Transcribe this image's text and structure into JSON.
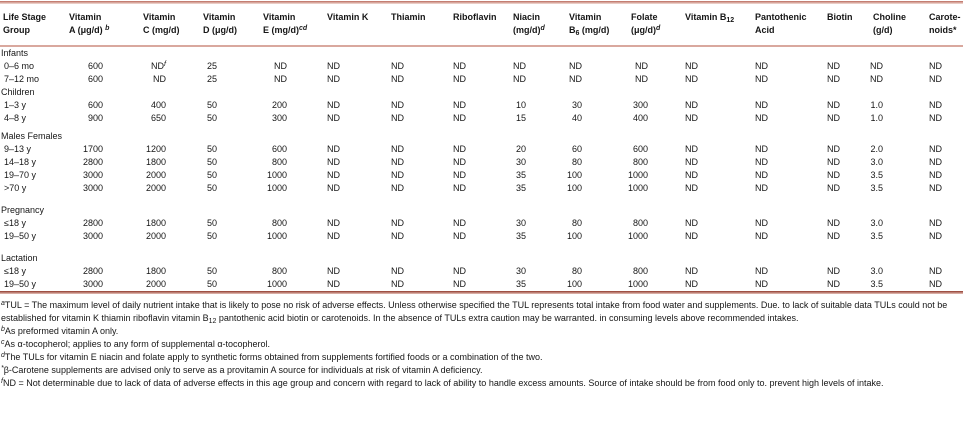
{
  "page": {
    "background_color": "#ffffff",
    "text_color": "#161616",
    "top_rule_color": "#c47e72",
    "header_rule_color": "#d9a89e",
    "bottom_rule_color": "#9e5044"
  },
  "table": {
    "columns": [
      {
        "lines": [
          "Life Stage",
          "Group"
        ]
      },
      {
        "lines": [
          "Vitamin",
          "A (μg/d) ^b^"
        ]
      },
      {
        "lines": [
          "Vitamin",
          "C (mg/d)"
        ]
      },
      {
        "lines": [
          "Vitamin",
          "D (μg/d)"
        ]
      },
      {
        "lines": [
          "Vitamin",
          "E (mg/d)^cd^"
        ]
      },
      {
        "lines": [
          "Vitamin K"
        ]
      },
      {
        "lines": [
          "Thiamin"
        ]
      },
      {
        "lines": [
          "Riboflavin"
        ]
      },
      {
        "lines": [
          "Niacin",
          "(mg/d)^d^"
        ]
      },
      {
        "lines": [
          "Vitamin",
          "B~6~ (mg/d)"
        ]
      },
      {
        "lines": [
          "Folate",
          "(μg/d)^d^"
        ]
      },
      {
        "lines": [
          "Vitamin B~12~"
        ]
      },
      {
        "lines": [
          "Pantothenic",
          "Acid"
        ]
      },
      {
        "lines": [
          "Biotin"
        ]
      },
      {
        "lines": [
          "Choline",
          "(g/d)"
        ]
      },
      {
        "lines": [
          "Carote-",
          "noids*"
        ]
      }
    ],
    "rows": [
      {
        "type": "section",
        "label": "Infants"
      },
      {
        "type": "data",
        "label": "0–6 mo",
        "values": [
          "600",
          "ND^f^",
          "25",
          "ND",
          "ND",
          "ND",
          "ND",
          "ND",
          "ND",
          "ND",
          "ND",
          "ND",
          "ND",
          "ND",
          "ND"
        ]
      },
      {
        "type": "data",
        "label": "7–12 mo",
        "values": [
          "600",
          "ND",
          "25",
          "ND",
          "ND",
          "ND",
          "ND",
          "ND",
          "ND",
          "ND",
          "ND",
          "ND",
          "ND",
          "ND",
          "ND"
        ]
      },
      {
        "type": "section",
        "label": "Children"
      },
      {
        "type": "data",
        "label": "1–3 y",
        "values": [
          "600",
          "400",
          "50",
          "200",
          "ND",
          "ND",
          "ND",
          "10",
          "30",
          "300",
          "ND",
          "ND",
          "ND",
          "1.0",
          "ND"
        ]
      },
      {
        "type": "data",
        "label": "4–8 y",
        "values": [
          "900",
          "650",
          "50",
          "300",
          "ND",
          "ND",
          "ND",
          "15",
          "40",
          "400",
          "ND",
          "ND",
          "ND",
          "1.0",
          "ND"
        ]
      },
      {
        "type": "section",
        "label": "Males Females"
      },
      {
        "type": "data",
        "label": "9–13 y",
        "values": [
          "1700",
          "1200",
          "50",
          "600",
          "ND",
          "ND",
          "ND",
          "20",
          "60",
          "600",
          "ND",
          "ND",
          "ND",
          "2.0",
          "ND"
        ]
      },
      {
        "type": "data",
        "label": "14–18 y",
        "values": [
          "2800",
          "1800",
          "50",
          "800",
          "ND",
          "ND",
          "ND",
          "30",
          "80",
          "800",
          "ND",
          "ND",
          "ND",
          "3.0",
          "ND"
        ]
      },
      {
        "type": "data",
        "label": "19–70 y",
        "values": [
          "3000",
          "2000",
          "50",
          "1000",
          "ND",
          "ND",
          "ND",
          "35",
          "100",
          "1000",
          "ND",
          "ND",
          "ND",
          "3.5",
          "ND"
        ]
      },
      {
        "type": "data",
        "label": ">70 y",
        "values": [
          "3000",
          "2000",
          "50",
          "1000",
          "ND",
          "ND",
          "ND",
          "35",
          "100",
          "1000",
          "ND",
          "ND",
          "ND",
          "3.5",
          "ND"
        ]
      },
      {
        "type": "section",
        "label": "Pregnancy"
      },
      {
        "type": "data",
        "label": "≤18 y",
        "values": [
          "2800",
          "1800",
          "50",
          "800",
          "ND",
          "ND",
          "ND",
          "30",
          "80",
          "800",
          "ND",
          "ND",
          "ND",
          "3.0",
          "ND"
        ]
      },
      {
        "type": "data",
        "label": "19–50 y",
        "values": [
          "3000",
          "2000",
          "50",
          "1000",
          "ND",
          "ND",
          "ND",
          "35",
          "100",
          "1000",
          "ND",
          "ND",
          "ND",
          "3.5",
          "ND"
        ]
      },
      {
        "type": "section",
        "label": "Lactation"
      },
      {
        "type": "data",
        "label": "≤18 y",
        "values": [
          "2800",
          "1800",
          "50",
          "800",
          "ND",
          "ND",
          "ND",
          "30",
          "80",
          "800",
          "ND",
          "ND",
          "ND",
          "3.0",
          "ND"
        ]
      },
      {
        "type": "data",
        "label": "19–50 y",
        "values": [
          "3000",
          "2000",
          "50",
          "1000",
          "ND",
          "ND",
          "ND",
          "35",
          "100",
          "1000",
          "ND",
          "ND",
          "ND",
          "3.5",
          "ND"
        ]
      }
    ]
  },
  "footnotes": [
    {
      "id": "a",
      "text": "^a^TUL = The maximum level of daily nutrient intake that is likely to pose no risk of adverse effects. Unless otherwise specified the TUL represents total intake from food water and supplements. Due. to lack of suitable data TULs could not be established for vitamin K thiamin riboflavin vitamin B~12~ pantothenic acid biotin or carotenoids. In the absence of TULs extra caution may be warranted. in consuming levels above recommended intakes."
    },
    {
      "id": "b",
      "text": "^b^As preformed vitamin A only."
    },
    {
      "id": "c",
      "text": "^c^As α-tocopherol; applies to any form of supplemental α-tocopherol."
    },
    {
      "id": "d",
      "text": "^d^The TULs for vitamin E niacin and folate apply to synthetic forms obtained from supplements fortified foods or a combination of the two."
    },
    {
      "id": "e",
      "text": "^*^β-Carotene supplements are advised only to serve as a provitamin A source for individuals at risk of vitamin A deficiency."
    },
    {
      "id": "f",
      "text": "^f^ND = Not determinable due to lack of data of adverse effects in this age group and concern with regard to lack of ability to handle excess amounts. Source of intake should be from food only to. prevent high levels of intake."
    }
  ]
}
